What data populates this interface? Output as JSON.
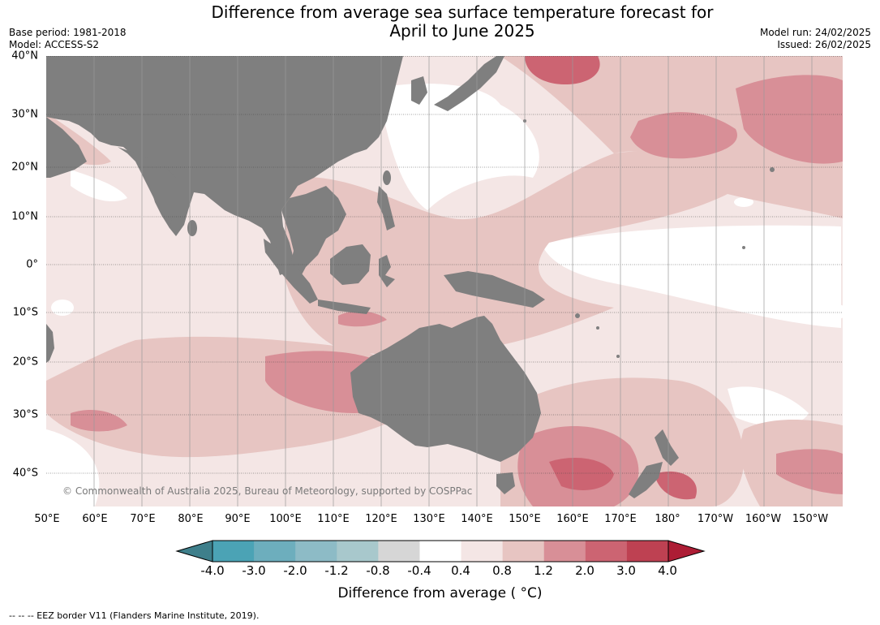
{
  "title_line1": "Difference from average sea surface temperature forecast for",
  "title_line2": "April to June 2025",
  "meta_left": {
    "base_period": "Base period: 1981-2018",
    "model": "Model: ACCESS-S2"
  },
  "meta_right": {
    "model_run": "Model run: 24/02/2025",
    "issued": "Issued: 26/02/2025"
  },
  "lat_labels": [
    "40°N",
    "30°N",
    "20°N",
    "10°N",
    "0°",
    "10°S",
    "20°S",
    "30°S",
    "40°S"
  ],
  "lon_labels": [
    "50°E",
    "60°E",
    "70°E",
    "80°E",
    "90°E",
    "100°E",
    "110°E",
    "120°E",
    "130°E",
    "140°E",
    "150°E",
    "160°E",
    "170°E",
    "180°",
    "170°W",
    "160°W",
    "150°W"
  ],
  "copyright": "© Commonwealth of Australia 2025, Bureau of Meteorology, supported by COSPPac",
  "colorbar": {
    "labels": [
      "-4.0",
      "-3.0",
      "-2.0",
      "-1.2",
      "-0.8",
      "-0.4",
      "0.4",
      "0.8",
      "1.2",
      "2.0",
      "3.0",
      "4.0"
    ],
    "colors": [
      "#3e7f8b",
      "#4ba3b5",
      "#6daebd",
      "#8dbbc6",
      "#a8c8cc",
      "#d6d6d6",
      "#ffffff",
      "#f4e6e5",
      "#e7c5c2",
      "#d88f97",
      "#cc6472",
      "#be4152",
      "#ad1d35"
    ],
    "title": "Difference from average ( °C)"
  },
  "footer": "--  --  -- EEZ border V11 (Flanders Marine Institute, 2019).",
  "colors": {
    "land": "#7f7f7f",
    "gridline": "#444444"
  }
}
